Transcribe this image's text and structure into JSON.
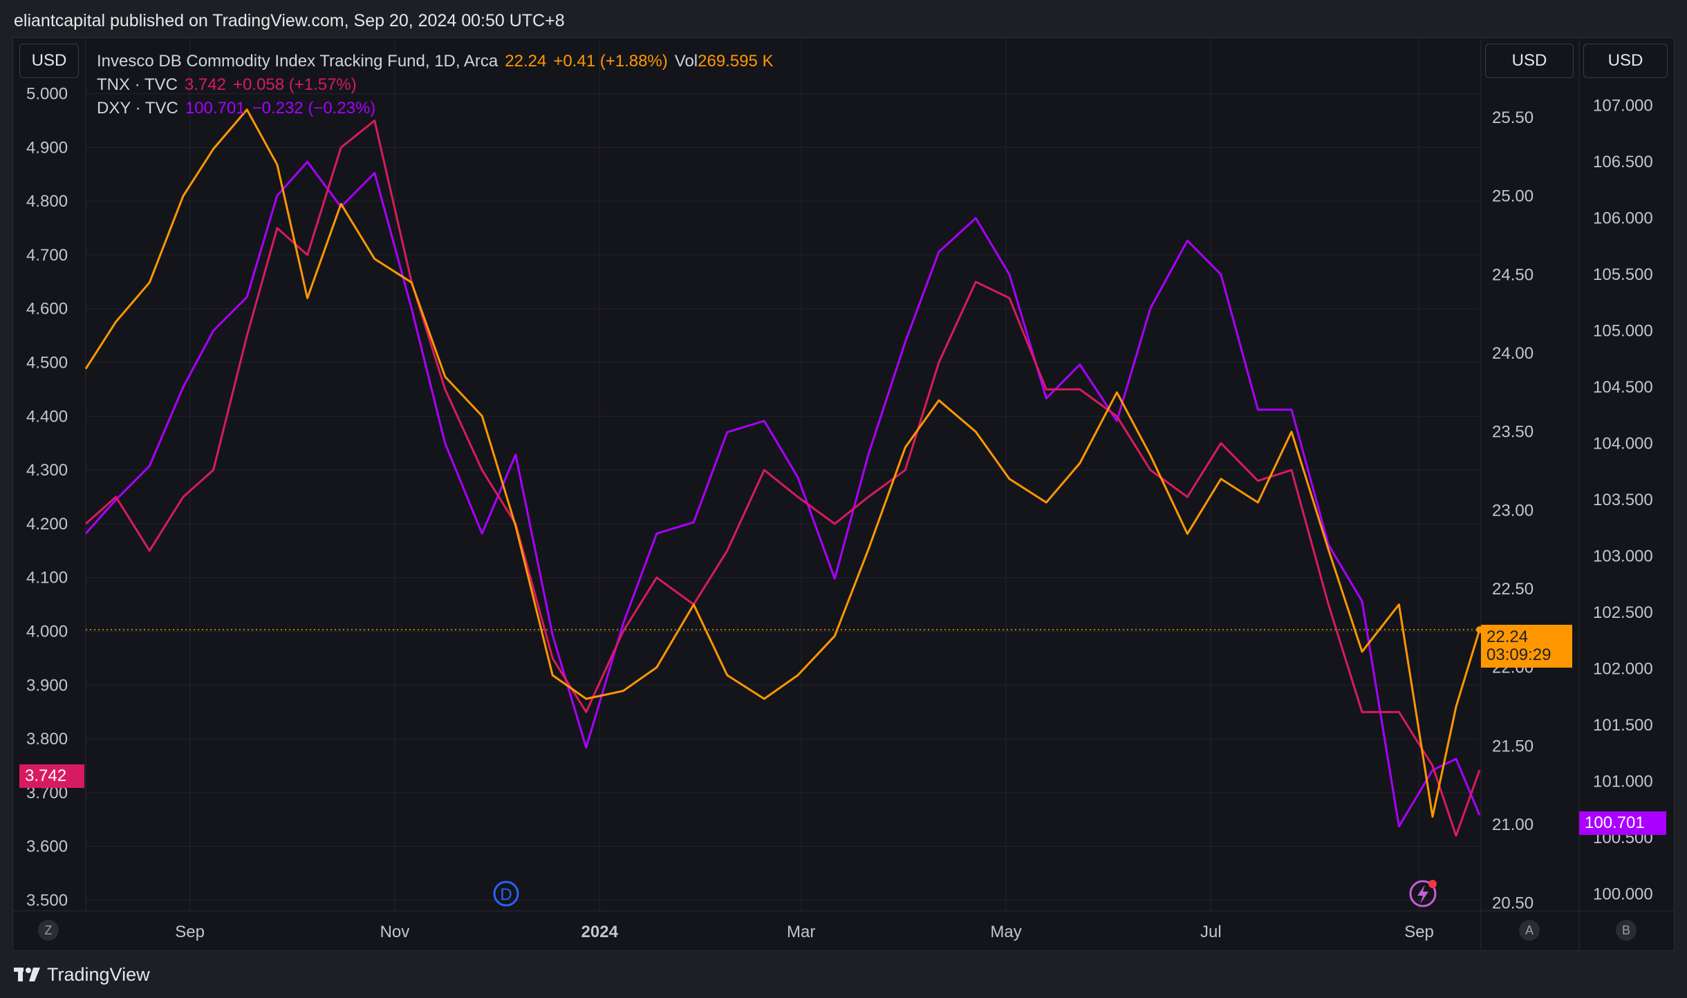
{
  "header": {
    "publish_text": "eliantcapital published on TradingView.com, Sep 20, 2024 00:50 UTC+8"
  },
  "footer": {
    "brand": "TradingView"
  },
  "toolbar": {
    "left_currency": "USD",
    "right_currency_1": "USD",
    "right_currency_2": "USD"
  },
  "legend": {
    "main": {
      "name": "Invesco DB Commodity Index Tracking Fund, 1D, Arca",
      "price": "22.24",
      "change": "+0.41 (+1.88%)",
      "vol_label": "Vol",
      "vol_value": "269.595 K"
    },
    "tnx": {
      "name": "TNX · TVC",
      "price": "3.742",
      "change": "+0.058 (+1.57%)"
    },
    "dxy": {
      "name": "DXY · TVC",
      "price": "100.701",
      "change": "−0.232 (−0.23%)"
    }
  },
  "badges": {
    "dbc_price": "22.24",
    "dbc_countdown": "03:09:29",
    "tnx_price": "3.742",
    "dxy_price": "100.701"
  },
  "axis_buttons": {
    "z": "Z",
    "a": "A",
    "b": "B"
  },
  "markers": {
    "d": "D"
  },
  "colors": {
    "dbc": "#ff9800",
    "tnx": "#d81b60",
    "dxy": "#aa00ff",
    "background": "#14151b",
    "grid": "#22242b"
  },
  "chart_data": {
    "type": "line",
    "x_range": [
      "2023-08-01",
      "2024-09-19"
    ],
    "x_tick_labels": [
      "Sep",
      "Nov",
      "2024",
      "Mar",
      "May",
      "Jul",
      "Sep"
    ],
    "x_tick_dates": [
      "2023-09-01",
      "2023-11-01",
      "2024-01-01",
      "2024-03-01",
      "2024-05-01",
      "2024-07-01",
      "2024-09-01"
    ],
    "axes": {
      "left": {
        "series": "TNX",
        "ylim": [
          3.48,
          5.02
        ],
        "ticks": [
          "5.000",
          "4.900",
          "4.800",
          "4.700",
          "4.600",
          "4.500",
          "4.400",
          "4.300",
          "4.200",
          "4.100",
          "4.000",
          "3.900",
          "3.800",
          "3.700",
          "3.600",
          "3.500"
        ]
      },
      "right1": {
        "series": "DBC",
        "ylim": [
          20.45,
          25.72
        ],
        "ticks": [
          "25.50",
          "25.00",
          "24.50",
          "24.00",
          "23.50",
          "23.00",
          "22.50",
          "22.00",
          "21.50",
          "21.00",
          "20.50"
        ]
      },
      "right2": {
        "series": "DXY",
        "ylim": [
          99.85,
          107.2
        ],
        "ticks": [
          "107.000",
          "106.500",
          "106.000",
          "105.500",
          "105.000",
          "104.500",
          "104.000",
          "103.500",
          "103.000",
          "102.500",
          "102.000",
          "101.500",
          "101.000",
          "100.500",
          "100.000"
        ]
      }
    },
    "last_price_line": {
      "series": "DBC",
      "value": 22.24
    },
    "series": [
      {
        "name": "DBC",
        "axis": "right1",
        "x": [
          "2023-08-01",
          "2023-08-10",
          "2023-08-20",
          "2023-08-30",
          "2023-09-08",
          "2023-09-18",
          "2023-09-27",
          "2023-10-06",
          "2023-10-16",
          "2023-10-26",
          "2023-11-06",
          "2023-11-16",
          "2023-11-27",
          "2023-12-07",
          "2023-12-18",
          "2023-12-28",
          "2024-01-08",
          "2024-01-18",
          "2024-01-29",
          "2024-02-08",
          "2024-02-19",
          "2024-02-29",
          "2024-03-11",
          "2024-03-21",
          "2024-04-01",
          "2024-04-11",
          "2024-04-22",
          "2024-05-02",
          "2024-05-13",
          "2024-05-23",
          "2024-06-03",
          "2024-06-13",
          "2024-06-24",
          "2024-07-04",
          "2024-07-15",
          "2024-07-25",
          "2024-08-05",
          "2024-08-15",
          "2024-08-26",
          "2024-09-05",
          "2024-09-12",
          "2024-09-19"
        ],
        "y": [
          23.9,
          24.2,
          24.45,
          25.0,
          25.3,
          25.55,
          25.2,
          24.35,
          24.95,
          24.6,
          24.45,
          23.85,
          23.6,
          22.9,
          21.95,
          21.8,
          21.85,
          22.0,
          22.4,
          21.95,
          21.8,
          21.95,
          22.2,
          22.75,
          23.4,
          23.7,
          23.5,
          23.2,
          23.05,
          23.3,
          23.75,
          23.35,
          22.85,
          23.2,
          23.05,
          23.5,
          22.75,
          22.1,
          22.4,
          21.05,
          21.75,
          22.24
        ]
      },
      {
        "name": "TNX",
        "axis": "left",
        "x": [
          "2023-08-01",
          "2023-08-10",
          "2023-08-20",
          "2023-08-30",
          "2023-09-08",
          "2023-09-18",
          "2023-09-27",
          "2023-10-06",
          "2023-10-16",
          "2023-10-26",
          "2023-11-06",
          "2023-11-16",
          "2023-11-27",
          "2023-12-07",
          "2023-12-18",
          "2023-12-28",
          "2024-01-08",
          "2024-01-18",
          "2024-01-29",
          "2024-02-08",
          "2024-02-19",
          "2024-02-29",
          "2024-03-11",
          "2024-03-21",
          "2024-04-01",
          "2024-04-11",
          "2024-04-22",
          "2024-05-02",
          "2024-05-13",
          "2024-05-23",
          "2024-06-03",
          "2024-06-13",
          "2024-06-24",
          "2024-07-04",
          "2024-07-15",
          "2024-07-25",
          "2024-08-05",
          "2024-08-15",
          "2024-08-26",
          "2024-09-05",
          "2024-09-12",
          "2024-09-19"
        ],
        "y": [
          4.2,
          4.25,
          4.15,
          4.25,
          4.3,
          4.55,
          4.75,
          4.7,
          4.9,
          4.95,
          4.65,
          4.45,
          4.3,
          4.2,
          3.95,
          3.85,
          4.0,
          4.1,
          4.05,
          4.15,
          4.3,
          4.25,
          4.2,
          4.25,
          4.3,
          4.5,
          4.65,
          4.62,
          4.45,
          4.45,
          4.4,
          4.3,
          4.25,
          4.35,
          4.28,
          4.3,
          4.05,
          3.85,
          3.85,
          3.75,
          3.62,
          3.742
        ]
      },
      {
        "name": "DXY",
        "axis": "right2",
        "x": [
          "2023-08-01",
          "2023-08-10",
          "2023-08-20",
          "2023-08-30",
          "2023-09-08",
          "2023-09-18",
          "2023-09-27",
          "2023-10-06",
          "2023-10-16",
          "2023-10-26",
          "2023-11-06",
          "2023-11-16",
          "2023-11-27",
          "2023-12-07",
          "2023-12-18",
          "2023-12-28",
          "2024-01-08",
          "2024-01-18",
          "2024-01-29",
          "2024-02-08",
          "2024-02-19",
          "2024-02-29",
          "2024-03-11",
          "2024-03-21",
          "2024-04-01",
          "2024-04-11",
          "2024-04-22",
          "2024-05-02",
          "2024-05-13",
          "2024-05-23",
          "2024-06-03",
          "2024-06-13",
          "2024-06-24",
          "2024-07-04",
          "2024-07-15",
          "2024-07-25",
          "2024-08-05",
          "2024-08-15",
          "2024-08-26",
          "2024-09-05",
          "2024-09-12",
          "2024-09-19"
        ],
        "y": [
          103.2,
          103.5,
          103.8,
          104.5,
          105.0,
          105.3,
          106.2,
          106.5,
          106.1,
          106.4,
          105.2,
          104.0,
          103.2,
          103.9,
          102.3,
          101.3,
          102.4,
          103.2,
          103.3,
          104.1,
          104.2,
          103.7,
          102.8,
          103.9,
          104.9,
          105.7,
          106.0,
          105.5,
          104.4,
          104.7,
          104.2,
          105.2,
          105.8,
          105.5,
          104.3,
          104.3,
          103.1,
          102.6,
          100.6,
          101.1,
          101.2,
          100.701
        ]
      }
    ]
  }
}
